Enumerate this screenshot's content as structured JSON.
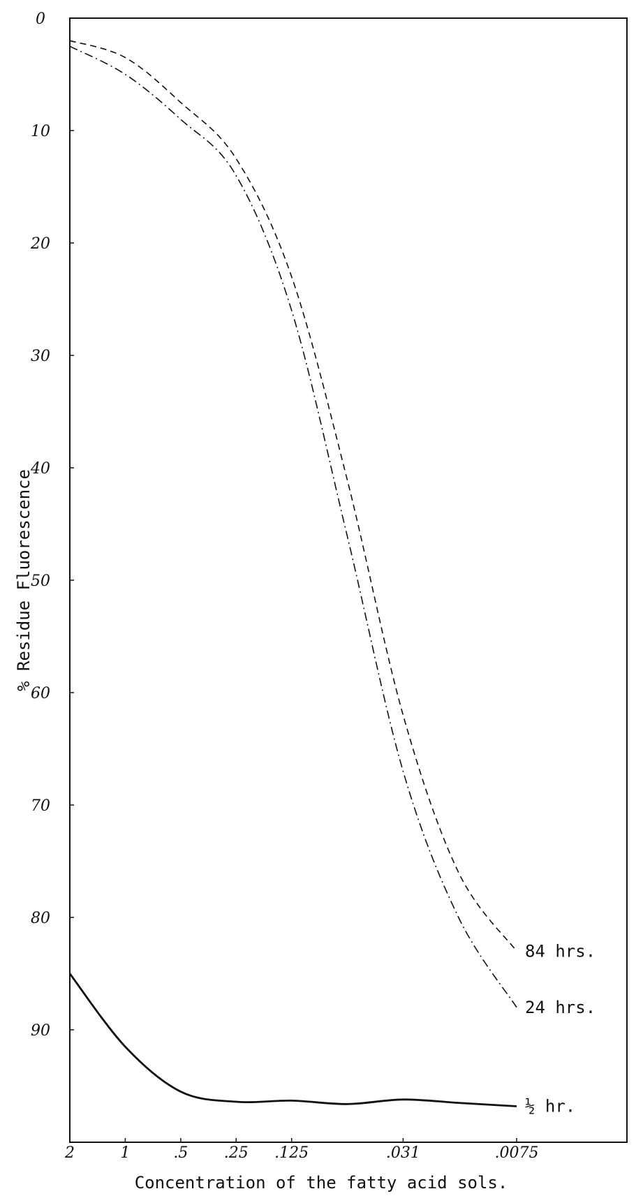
{
  "chart_data": {
    "type": "line",
    "xlabel": "Concentration of the fatty acid sols.",
    "ylabel": "% Residue Fluorescence",
    "y_inverted": true,
    "ylim": [
      0,
      100
    ],
    "grid": false,
    "x_ticks": [
      "2",
      "1",
      ".5",
      ".25",
      ".125",
      ".031",
      ".0075"
    ],
    "y_ticks": [
      "0",
      "10",
      "20",
      "30",
      "40",
      "50",
      "60",
      "70",
      "80",
      "90"
    ],
    "series": [
      {
        "name": "84 hrs.",
        "style": "dashed",
        "points": [
          {
            "x": "2",
            "y": 2
          },
          {
            "x": "1",
            "y": 3.5
          },
          {
            "x": ".5",
            "y": 7.5
          },
          {
            "x": ".25",
            "y": 12.5
          },
          {
            "x": ".125",
            "y": 23
          },
          {
            "x": ".0625",
            "y": 41
          },
          {
            "x": ".031",
            "y": 62
          },
          {
            "x": ".0155",
            "y": 76
          },
          {
            "x": ".0075",
            "y": 83
          }
        ]
      },
      {
        "name": "24 hrs.",
        "style": "dash-dot",
        "points": [
          {
            "x": "2",
            "y": 2.5
          },
          {
            "x": "1",
            "y": 5
          },
          {
            "x": ".5",
            "y": 9
          },
          {
            "x": ".25",
            "y": 14
          },
          {
            "x": ".125",
            "y": 26
          },
          {
            "x": ".0625",
            "y": 46
          },
          {
            "x": ".031",
            "y": 67
          },
          {
            "x": ".0155",
            "y": 80
          },
          {
            "x": ".0075",
            "y": 88
          }
        ]
      },
      {
        "name": "½ hr.",
        "style": "solid",
        "points": [
          {
            "x": "2",
            "y": 85
          },
          {
            "x": "1",
            "y": 91.5
          },
          {
            "x": ".5",
            "y": 95.5
          },
          {
            "x": ".25",
            "y": 96.4
          },
          {
            "x": ".125",
            "y": 96.3
          },
          {
            "x": ".0625",
            "y": 96.6
          },
          {
            "x": ".031",
            "y": 96.2
          },
          {
            "x": ".0155",
            "y": 96.5
          },
          {
            "x": ".0075",
            "y": 96.8
          }
        ]
      }
    ]
  }
}
